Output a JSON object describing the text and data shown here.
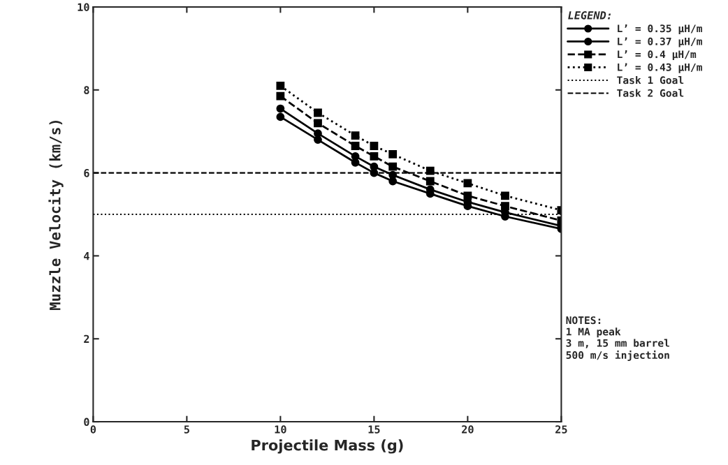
{
  "chart_data": {
    "type": "line",
    "xlabel": "Projectile Mass (g)",
    "ylabel": "Muzzle Velocity (km/s)",
    "x": [
      10,
      12,
      14,
      15,
      16,
      18,
      20,
      22,
      25
    ],
    "series": [
      {
        "name": "L’ = 0.35 μH/m",
        "color": "#000000",
        "marker": "circle",
        "line_style": "solid",
        "values": [
          7.35,
          6.8,
          6.25,
          6.0,
          5.8,
          5.5,
          5.2,
          4.95,
          4.65
        ]
      },
      {
        "name": "L’ = 0.37 μH/m",
        "color": "#000000",
        "marker": "circle",
        "line_style": "solid",
        "values": [
          7.55,
          6.95,
          6.4,
          6.15,
          5.95,
          5.6,
          5.3,
          5.05,
          4.72
        ]
      },
      {
        "name": "L’ = 0.4 μH/m",
        "color": "#000000",
        "marker": "square",
        "line_style": "dashed",
        "values": [
          7.85,
          7.2,
          6.65,
          6.4,
          6.15,
          5.8,
          5.45,
          5.2,
          4.85
        ]
      },
      {
        "name": "L’ = 0.43 μH/m",
        "color": "#000000",
        "marker": "square",
        "line_style": "dotted",
        "values": [
          8.1,
          7.45,
          6.9,
          6.65,
          6.45,
          6.05,
          5.75,
          5.45,
          5.1
        ]
      }
    ],
    "ref_lines": [
      {
        "axis": "y",
        "value": 5,
        "label": "Task 1 Goal",
        "line_style": "dotted",
        "color": "#000000"
      },
      {
        "axis": "y",
        "value": 6,
        "label": "Task 2 Goal",
        "line_style": "dashed",
        "color": "#000000"
      }
    ],
    "legend_title": "LEGEND:",
    "legend": "top right",
    "annotations": [
      "NOTES:\n1 MA peak\n3 m, 15 mm barrel\n500 m/s injection"
    ],
    "xlim": [
      0,
      25
    ],
    "ylim": [
      0,
      10
    ],
    "xticks": [
      0,
      5,
      10,
      15,
      20,
      25
    ],
    "yticks": [
      0,
      2,
      4,
      6,
      8,
      10
    ],
    "grid": false
  }
}
